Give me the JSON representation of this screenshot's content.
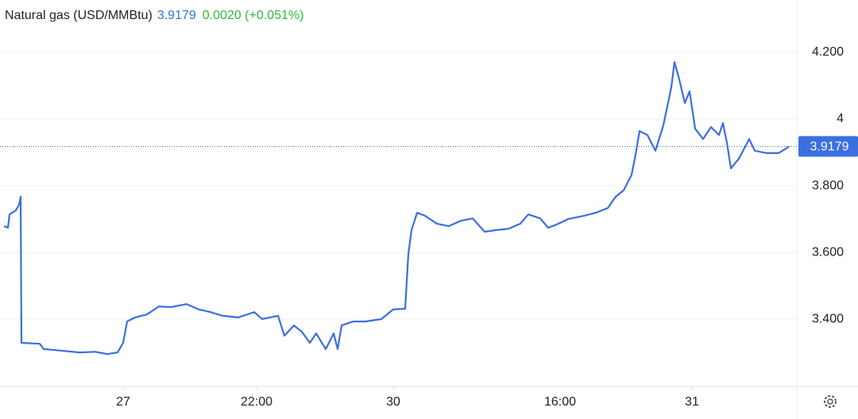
{
  "chart_data": {
    "type": "line",
    "title": "Natural gas (USD/MMBtu)",
    "last_price": 3.9179,
    "change": "0.0020 (+0.051%)",
    "color": "#3b6fe0",
    "grid": true,
    "xlim": [
      0,
      200.6
    ],
    "ylim": [
      3.198,
      4.357
    ],
    "xticks": [
      {
        "value": 31,
        "label": "27"
      },
      {
        "value": 64.6,
        "label": "22:00"
      },
      {
        "value": 99,
        "label": "30"
      },
      {
        "value": 141,
        "label": "16:00"
      },
      {
        "value": 174.2,
        "label": "31"
      }
    ],
    "yticks": [
      {
        "value": 3.4,
        "label": "3.400"
      },
      {
        "value": 3.6,
        "label": "3.600"
      },
      {
        "value": 3.8,
        "label": "3.800"
      },
      4,
      {
        "value": 4.2,
        "label": "4.200"
      }
    ],
    "x": [
      1,
      2,
      2.4,
      4,
      4.8,
      5.2,
      5.4,
      10,
      11,
      14,
      20,
      24,
      27,
      29.6,
      31,
      32,
      34,
      37,
      40,
      43,
      47,
      50,
      53,
      56,
      60,
      64,
      66,
      70,
      71.6,
      74,
      76,
      78,
      79.6,
      82,
      84,
      85,
      86,
      89,
      92,
      96,
      99,
      102,
      102.8,
      103.6,
      105,
      107,
      110,
      113,
      116,
      119,
      122,
      125,
      128,
      131,
      133,
      136,
      138,
      140,
      143,
      147,
      150,
      153,
      155,
      157,
      159,
      160,
      161,
      163,
      165,
      167,
      169,
      169.8,
      171,
      172.4,
      173.6,
      175,
      177,
      179,
      181,
      182,
      183,
      184,
      186,
      188.6,
      190,
      193,
      196,
      198.6
    ],
    "values": [
      3.679,
      3.674,
      3.714,
      3.726,
      3.743,
      3.767,
      3.329,
      3.326,
      3.31,
      3.307,
      3.3,
      3.302,
      3.295,
      3.3,
      3.329,
      3.393,
      3.405,
      3.414,
      3.438,
      3.436,
      3.445,
      3.429,
      3.421,
      3.41,
      3.405,
      3.421,
      3.4,
      3.41,
      3.35,
      3.381,
      3.362,
      3.329,
      3.357,
      3.31,
      3.357,
      3.31,
      3.381,
      3.393,
      3.393,
      3.4,
      3.429,
      3.431,
      3.595,
      3.667,
      3.719,
      3.71,
      3.686,
      3.679,
      3.695,
      3.702,
      3.662,
      3.667,
      3.671,
      3.686,
      3.714,
      3.702,
      3.674,
      3.683,
      3.7,
      3.71,
      3.719,
      3.733,
      3.767,
      3.786,
      3.833,
      3.893,
      3.964,
      3.952,
      3.905,
      3.981,
      4.095,
      4.171,
      4.119,
      4.048,
      4.083,
      3.971,
      3.94,
      3.976,
      3.952,
      3.988,
      3.929,
      3.852,
      3.881,
      3.94,
      3.905,
      3.898,
      3.898,
      3.917
    ]
  }
}
